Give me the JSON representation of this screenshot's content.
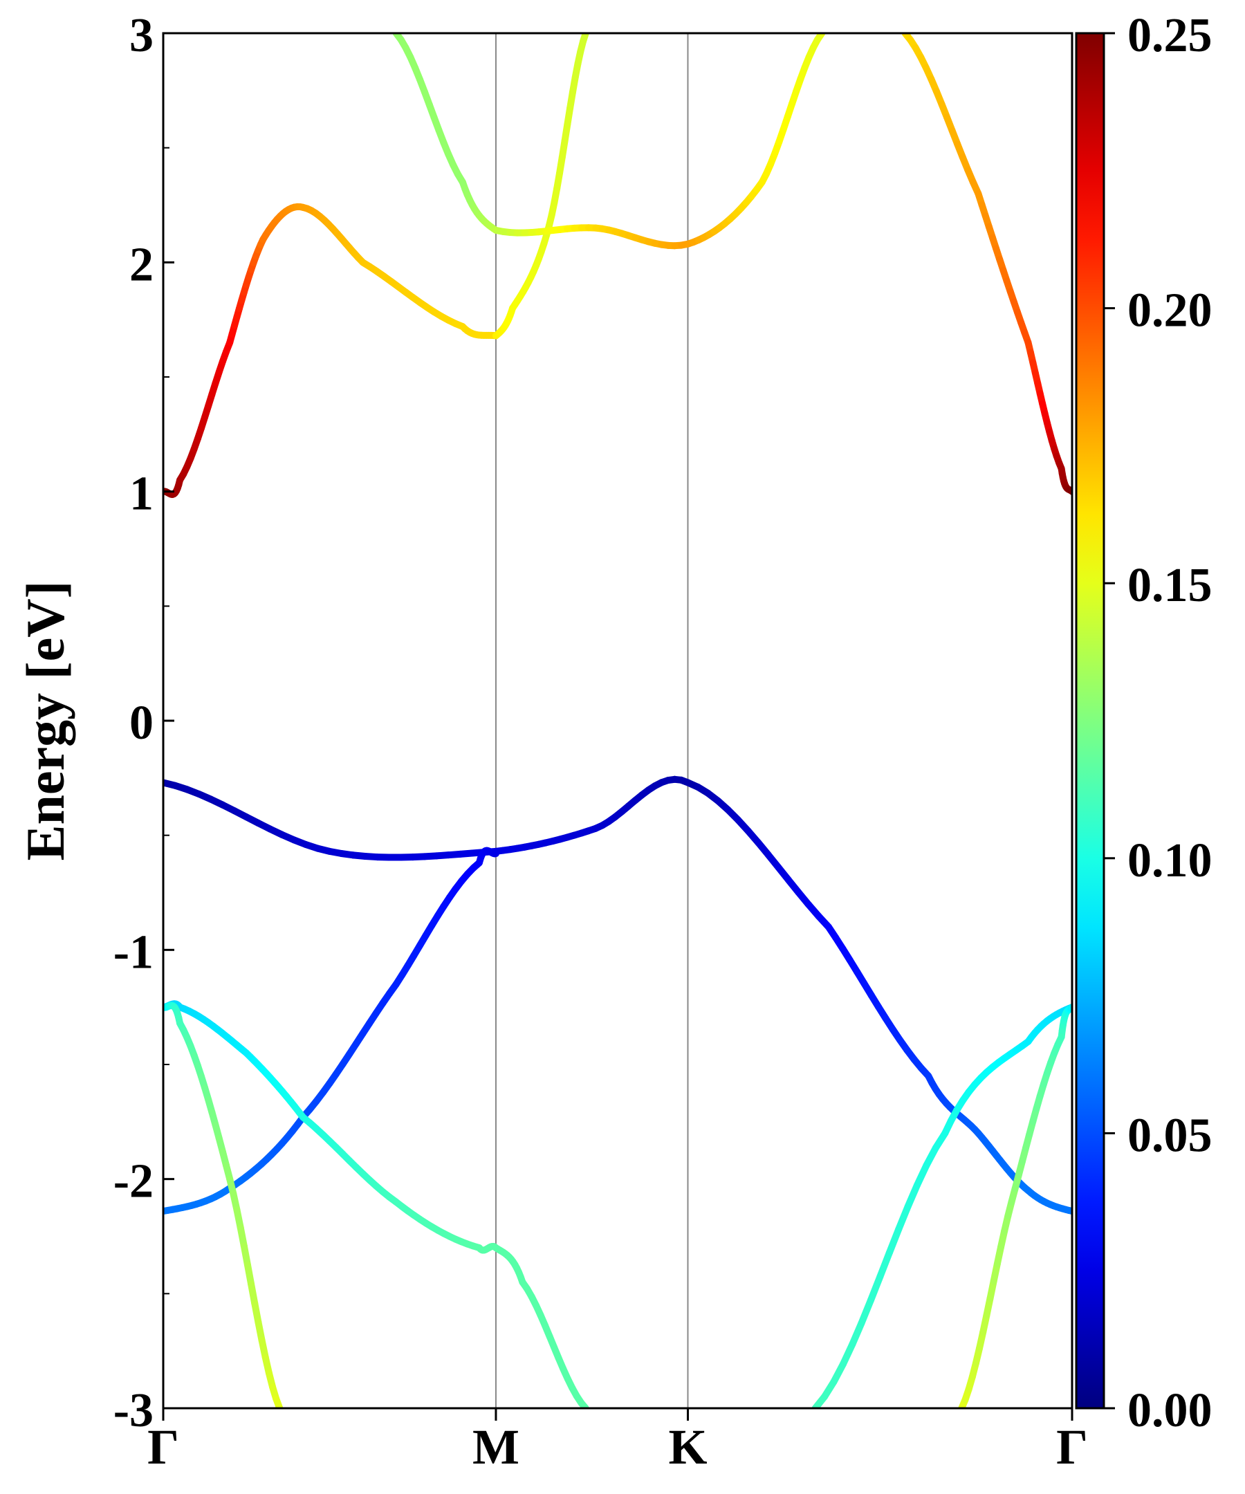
{
  "chart_data": {
    "type": "line",
    "title": "",
    "xlabel": "",
    "ylabel": "Energy [eV]",
    "ylim": [
      -3,
      3
    ],
    "y_ticks_major": [
      -3,
      -2,
      -1,
      0,
      1,
      2,
      3
    ],
    "y_ticks_minor": [
      -2.5,
      -1.5,
      -0.5,
      0.5,
      1.5,
      2.5
    ],
    "x_ticks": [
      {
        "label": "Γ",
        "k": 0
      },
      {
        "label": "M",
        "k": 1
      },
      {
        "label": "K",
        "k": 1.577
      },
      {
        "label": "Γ",
        "k": 2.732
      }
    ],
    "high_symmetry_lines": [
      1,
      1.577
    ],
    "colorbar": {
      "colormap": "jet",
      "range": [
        0.0,
        0.25
      ],
      "ticks": [
        "0.00",
        "0.05",
        "0.10",
        "0.15",
        "0.20",
        "0.25"
      ],
      "tick_values": [
        0.0,
        0.05,
        0.1,
        0.15,
        0.2,
        0.25
      ]
    },
    "series": [
      {
        "points": [
          [
            0,
            -0.27
          ],
          [
            0.5,
            -0.57
          ],
          [
            1,
            -0.57
          ],
          [
            1.3,
            -0.47
          ],
          [
            1.577,
            -0.27
          ],
          [
            2.0,
            -0.9
          ],
          [
            2.3,
            -1.55
          ],
          [
            2.45,
            -1.8
          ],
          [
            2.6,
            -2.05
          ],
          [
            2.732,
            -2.14
          ]
        ],
        "weights": [
          0.01,
          0.02,
          0.025,
          0.02,
          0.01,
          0.03,
          0.045,
          0.055,
          0.06,
          0.06
        ]
      },
      {
        "points": [
          [
            0,
            -2.14
          ],
          [
            0.2,
            -2.04
          ],
          [
            0.42,
            -1.73
          ],
          [
            0.7,
            -1.15
          ],
          [
            0.95,
            -0.62
          ],
          [
            1,
            -0.58
          ]
        ],
        "weights": [
          0.06,
          0.06,
          0.05,
          0.04,
          0.03,
          0.025
        ]
      },
      {
        "points": [
          [
            0,
            -1.25
          ],
          [
            0.05,
            -1.25
          ],
          [
            0.25,
            -1.45
          ],
          [
            0.42,
            -1.73
          ],
          [
            0.7,
            -2.1
          ],
          [
            0.95,
            -2.3
          ],
          [
            1,
            -2.3
          ],
          [
            1.08,
            -2.45
          ],
          [
            1.27,
            -3.0
          ]
        ],
        "weights": [
          0.085,
          0.085,
          0.09,
          0.1,
          0.11,
          0.115,
          0.115,
          0.115,
          0.115
        ]
      },
      {
        "points": [
          [
            0,
            -1.25
          ],
          [
            0.05,
            -1.32
          ],
          [
            0.2,
            -2.0
          ],
          [
            0.35,
            -3.0
          ]
        ],
        "weights": [
          0.09,
          0.11,
          0.13,
          0.15
        ]
      },
      {
        "points": [
          [
            1.96,
            -3.0
          ],
          [
            2.35,
            -1.8
          ],
          [
            2.6,
            -1.4
          ],
          [
            2.732,
            -1.25
          ]
        ],
        "weights": [
          0.11,
          0.1,
          0.09,
          0.085
        ]
      },
      {
        "points": [
          [
            2.4,
            -3.0
          ],
          [
            2.55,
            -2.1
          ],
          [
            2.7,
            -1.38
          ],
          [
            2.732,
            -1.25
          ]
        ],
        "weights": [
          0.15,
          0.13,
          0.11,
          0.09
        ]
      },
      {
        "points": [
          [
            0,
            1.0
          ],
          [
            0.05,
            1.05
          ],
          [
            0.2,
            1.65
          ],
          [
            0.3,
            2.1
          ],
          [
            0.42,
            2.24
          ],
          [
            0.6,
            2.0
          ],
          [
            0.9,
            1.72
          ],
          [
            1,
            1.68
          ]
        ],
        "weights": [
          0.25,
          0.24,
          0.22,
          0.19,
          0.18,
          0.17,
          0.165,
          0.165
        ]
      },
      {
        "points": [
          [
            1,
            1.68
          ],
          [
            1.05,
            1.8
          ],
          [
            1.16,
            2.16
          ],
          [
            1.27,
            3.0
          ]
        ],
        "weights": [
          0.16,
          0.155,
          0.15,
          0.145
        ]
      },
      {
        "points": [
          [
            0.7,
            3.0
          ],
          [
            0.9,
            2.35
          ],
          [
            1,
            2.14
          ],
          [
            1.3,
            2.15
          ],
          [
            1.577,
            2.08
          ],
          [
            1.8,
            2.35
          ],
          [
            1.98,
            3.0
          ]
        ],
        "weights": [
          0.13,
          0.13,
          0.14,
          0.165,
          0.18,
          0.16,
          0.15
        ]
      },
      {
        "points": [
          [
            2.23,
            3.0
          ],
          [
            2.45,
            2.3
          ],
          [
            2.6,
            1.65
          ],
          [
            2.7,
            1.1
          ],
          [
            2.732,
            1.0
          ]
        ],
        "weights": [
          0.165,
          0.18,
          0.2,
          0.24,
          0.25
        ]
      }
    ]
  }
}
